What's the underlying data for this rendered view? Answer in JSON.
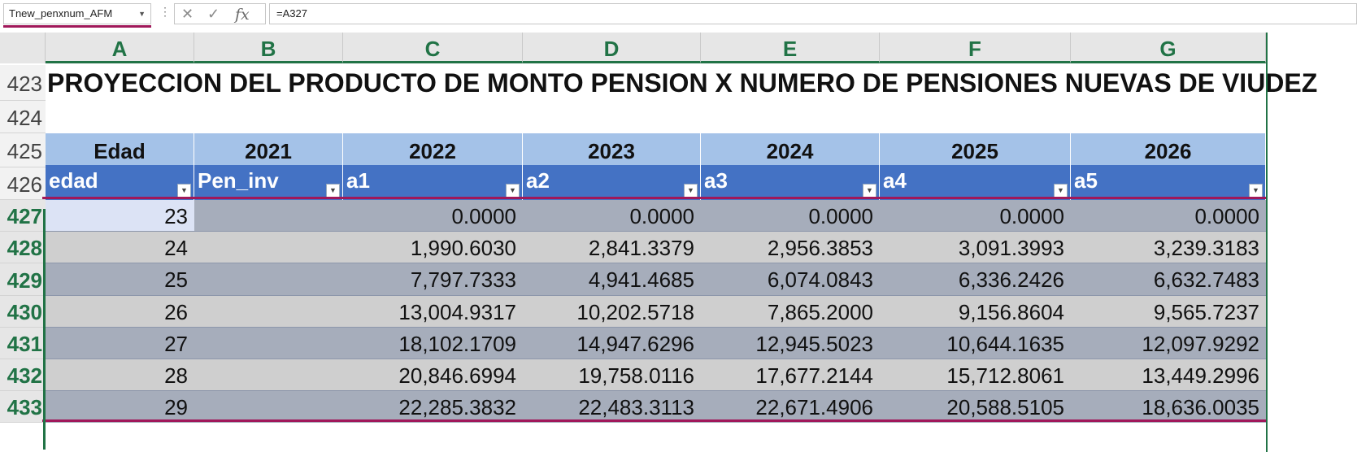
{
  "formula_bar": {
    "name_box": "Tnew_penxnum_AFM",
    "formula": "=A327",
    "cancel_icon": "✕",
    "enter_icon": "✓",
    "fx_label": "fx"
  },
  "columns": [
    "A",
    "B",
    "C",
    "D",
    "E",
    "F",
    "G"
  ],
  "rows": {
    "r423": "423",
    "r424": "424",
    "r425": "425",
    "r426": "426",
    "r427": "427",
    "r428": "428",
    "r429": "429",
    "r430": "430",
    "r431": "431",
    "r432": "432",
    "r433": "433"
  },
  "sheet": {
    "title": "PROYECCION DEL PRODUCTO DE MONTO PENSION X NUMERO DE PENSIONES NUEVAS DE VIUDEZ",
    "year_headers": [
      "Edad",
      "2021",
      "2022",
      "2023",
      "2024",
      "2025",
      "2026"
    ],
    "field_headers": [
      "edad",
      "Pen_inv",
      "a1",
      "a2",
      "a3",
      "a4",
      "a5"
    ],
    "data": [
      [
        "23",
        "",
        "0.0000",
        "0.0000",
        "0.0000",
        "0.0000",
        "0.0000"
      ],
      [
        "24",
        "",
        "1,990.6030",
        "2,841.3379",
        "2,956.3853",
        "3,091.3993",
        "3,239.3183"
      ],
      [
        "25",
        "",
        "7,797.7333",
        "4,941.4685",
        "6,074.0843",
        "6,336.2426",
        "6,632.7483"
      ],
      [
        "26",
        "",
        "13,004.9317",
        "10,202.5718",
        "7,865.2000",
        "9,156.8604",
        "9,565.7237"
      ],
      [
        "27",
        "",
        "18,102.1709",
        "14,947.6296",
        "12,945.5023",
        "10,644.1635",
        "12,097.9292"
      ],
      [
        "28",
        "",
        "20,846.6994",
        "19,758.0116",
        "17,677.2144",
        "15,712.8061",
        "13,449.2996"
      ],
      [
        "29",
        "",
        "22,285.3832",
        "22,483.3113",
        "22,671.4906",
        "20,588.5105",
        "18,636.0035"
      ]
    ]
  },
  "colors": {
    "accent_green": "#217346",
    "selection_pink": "#a0185a",
    "table_header_blue": "#4472c4",
    "year_header_blue": "#a4c2e8"
  }
}
